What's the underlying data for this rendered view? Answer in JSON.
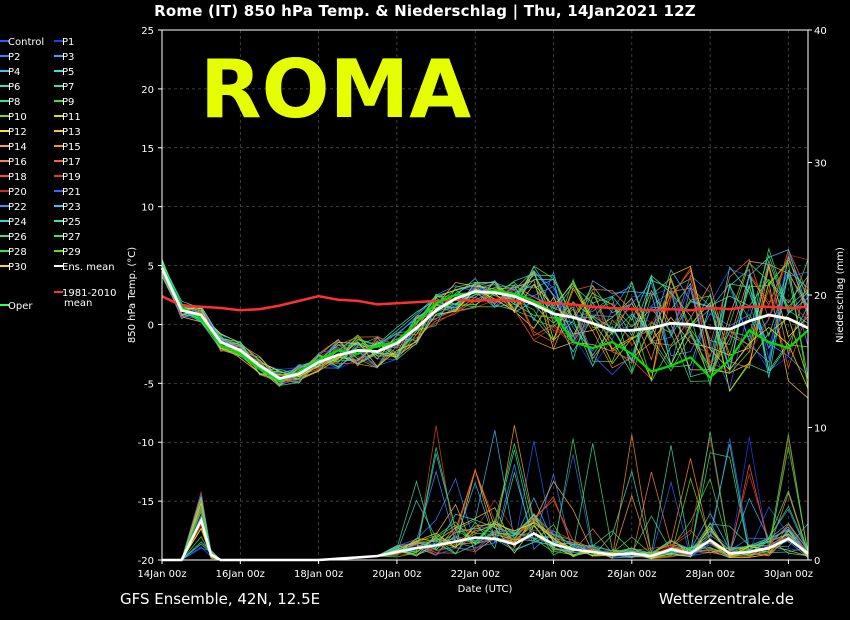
{
  "header": {
    "title": "Rome  (IT)  850 hPa Temp. & Niederschlag | Thu, 14Jan2021 12Z"
  },
  "overlay": {
    "big_label": "ROMA"
  },
  "footer": {
    "left": "GFS Ensemble, 42N, 12.5E",
    "right": "Wetterzentrale.de"
  },
  "colors": {
    "background": "#000000",
    "overlay_text": "#e6ff00",
    "ens_mean": "#ffffff",
    "climate_mean": "#ff3030",
    "oper": "#00e000",
    "grid": "#555555"
  },
  "chart_data": {
    "type": "line",
    "title": "Rome  (IT)  850 hPa Temp. & Niederschlag | Thu, 14Jan2021 12Z",
    "xlabel": "Date (UTC)",
    "ylabel": "850 hPa Temp. (°C)",
    "y2label": "Niederschlag (mm)",
    "xlim_hours": [
      0,
      396
    ],
    "ylim": [
      -20,
      25
    ],
    "y2lim": [
      0,
      40
    ],
    "x_tick_labels": [
      "14Jan 00z",
      "16Jan 00z",
      "18Jan 00z",
      "20Jan 00z",
      "22Jan 00z",
      "24Jan 00z",
      "26Jan 00z",
      "28Jan 00z",
      "30Jan 00z"
    ],
    "x_tick_hours": [
      0,
      48,
      96,
      144,
      192,
      240,
      288,
      336,
      384
    ],
    "y_ticks": [
      25,
      20,
      15,
      10,
      5,
      0,
      -5,
      -10,
      -15,
      -20
    ],
    "y2_ticks": [
      40,
      30,
      20,
      10,
      0
    ],
    "grid": true,
    "legend": {
      "placement": "left",
      "entries": [
        {
          "name": "Control",
          "color": "#2060ff"
        },
        {
          "name": "P1",
          "color": "#2040ff"
        },
        {
          "name": "P2",
          "color": "#4080ff"
        },
        {
          "name": "P3",
          "color": "#40a0ff"
        },
        {
          "name": "P4",
          "color": "#40c0ff"
        },
        {
          "name": "P5",
          "color": "#40e0e0"
        },
        {
          "name": "P6",
          "color": "#40e0c0"
        },
        {
          "name": "P7",
          "color": "#40e0a0"
        },
        {
          "name": "P8",
          "color": "#40e080"
        },
        {
          "name": "P9",
          "color": "#40e040"
        },
        {
          "name": "P10",
          "color": "#80e000"
        },
        {
          "name": "P11",
          "color": "#e0e000"
        },
        {
          "name": "P12",
          "color": "#ffe040"
        },
        {
          "name": "P13",
          "color": "#ffc040"
        },
        {
          "name": "P14",
          "color": "#ffa040"
        },
        {
          "name": "P15",
          "color": "#ff9020"
        },
        {
          "name": "P16",
          "color": "#ff8040"
        },
        {
          "name": "P17",
          "color": "#ff6030"
        },
        {
          "name": "P18",
          "color": "#ff5020"
        },
        {
          "name": "P19",
          "color": "#e04020"
        },
        {
          "name": "P20",
          "color": "#c03020"
        },
        {
          "name": "P21",
          "color": "#4060ff"
        },
        {
          "name": "P22",
          "color": "#4090ff"
        },
        {
          "name": "P23",
          "color": "#40c0ff"
        },
        {
          "name": "P24",
          "color": "#40d0d0"
        },
        {
          "name": "P25",
          "color": "#40e0b0"
        },
        {
          "name": "P26",
          "color": "#40e090"
        },
        {
          "name": "P27",
          "color": "#40e070"
        },
        {
          "name": "P28",
          "color": "#40e050"
        },
        {
          "name": "P29",
          "color": "#60e020"
        },
        {
          "name": "P30",
          "color": "#ffe000"
        },
        {
          "name": "Ens. mean",
          "color": "#ffffff"
        },
        {
          "name": "Oper",
          "color": "#40ff40"
        },
        {
          "name": "1981-2010\nmean",
          "color": "#ff3030"
        }
      ]
    },
    "series_temp": [
      {
        "name": "Ens. mean",
        "color": "#ffffff",
        "hours": [
          0,
          12,
          24,
          36,
          48,
          60,
          72,
          84,
          96,
          108,
          120,
          132,
          144,
          156,
          168,
          180,
          192,
          204,
          216,
          228,
          240,
          252,
          264,
          276,
          288,
          300,
          312,
          324,
          336,
          348,
          360,
          372,
          384,
          396
        ],
        "values": [
          4.8,
          1.2,
          0.8,
          -1.5,
          -2.2,
          -3.5,
          -4.6,
          -4.2,
          -3.2,
          -2.6,
          -2.2,
          -2.3,
          -1.6,
          -0.3,
          1.2,
          2.2,
          2.8,
          2.7,
          2.4,
          1.7,
          0.9,
          0.6,
          0.1,
          -0.5,
          -0.5,
          -0.3,
          0.1,
          0.0,
          -0.3,
          -0.4,
          0.3,
          0.8,
          0.5,
          -0.3
        ]
      },
      {
        "name": "1981-2010 mean",
        "color": "#ff3030",
        "hours": [
          0,
          12,
          24,
          36,
          48,
          60,
          72,
          84,
          96,
          108,
          120,
          132,
          144,
          156,
          168,
          180,
          192,
          204,
          216,
          228,
          240,
          252,
          264,
          276,
          288,
          300,
          312,
          324,
          336,
          348,
          360,
          372,
          384,
          396
        ],
        "values": [
          2.4,
          1.6,
          1.5,
          1.4,
          1.2,
          1.3,
          1.6,
          2.0,
          2.4,
          2.1,
          2.0,
          1.7,
          1.8,
          1.9,
          2.0,
          2.1,
          2.0,
          2.1,
          2.0,
          1.9,
          1.8,
          1.7,
          1.5,
          1.4,
          1.3,
          1.2,
          1.3,
          1.2,
          1.4,
          1.3,
          1.5,
          1.5,
          1.4,
          1.5
        ]
      },
      {
        "name": "Oper",
        "color": "#00e000",
        "hours": [
          0,
          12,
          24,
          36,
          48,
          60,
          72,
          84,
          96,
          108,
          120,
          132,
          144,
          156,
          168,
          180,
          192,
          204,
          216,
          228,
          240,
          252,
          264,
          276,
          288,
          300,
          312,
          324,
          336,
          348,
          360,
          372,
          384,
          396
        ],
        "values": [
          5.0,
          1.5,
          0.5,
          -1.8,
          -2.5,
          -3.8,
          -4.8,
          -4.0,
          -3.0,
          -2.2,
          -2.5,
          -1.8,
          -1.5,
          0.2,
          1.8,
          2.5,
          2.7,
          2.9,
          2.6,
          2.0,
          1.0,
          -1.5,
          -2.0,
          -1.5,
          -2.5,
          -4.0,
          -3.5,
          -2.8,
          -4.5,
          -3.0,
          -0.5,
          -1.5,
          -2.0,
          -0.5
        ]
      }
    ],
    "series_precip": [
      {
        "name": "Ens. mean",
        "color": "#ffffff",
        "hours": [
          0,
          12,
          24,
          30,
          36,
          48,
          60,
          72,
          84,
          96,
          108,
          120,
          132,
          144,
          156,
          168,
          180,
          192,
          204,
          216,
          228,
          240,
          252,
          264,
          276,
          288,
          300,
          312,
          324,
          336,
          348,
          360,
          372,
          384,
          396
        ],
        "values": [
          0,
          0,
          3.0,
          0.4,
          0,
          0,
          0,
          0,
          0,
          0,
          0.1,
          0.2,
          0.3,
          0.6,
          0.9,
          1.1,
          1.4,
          1.7,
          1.6,
          1.2,
          2.0,
          1.2,
          0.8,
          0.6,
          0.4,
          0.5,
          0.3,
          0.8,
          0.5,
          1.5,
          0.5,
          0.6,
          0.9,
          1.6,
          0.5
        ]
      }
    ]
  }
}
